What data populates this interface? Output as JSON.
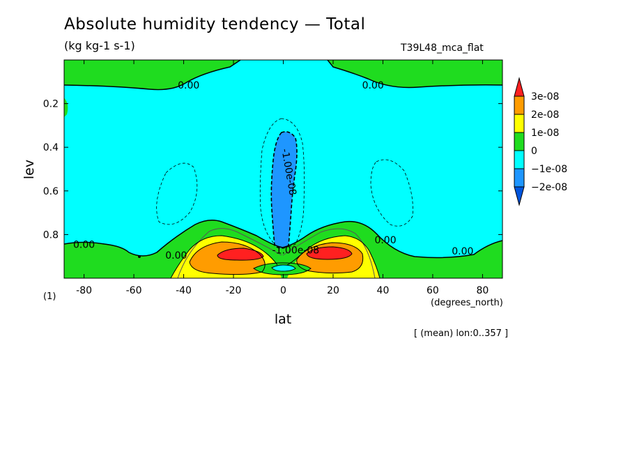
{
  "chart_data": {
    "type": "contour",
    "title": "Absolute humidity tendency — Total",
    "units": "(kg kg-1 s-1)",
    "experiment": "T39L48_mca_flat",
    "xlabel": "lat",
    "xunit": "(degrees_north)",
    "ylabel": "lev",
    "yunit": "(1)",
    "subtitle_note": "[ (mean) lon:0..357 ]",
    "xlim": [
      -88,
      88
    ],
    "ylim": [
      1.0,
      0.0
    ],
    "xticks": [
      -80,
      -60,
      -40,
      -20,
      0,
      20,
      40,
      60,
      80
    ],
    "yticks": [
      0.2,
      0.4,
      0.6,
      0.8
    ],
    "colorbar": {
      "labels": [
        "3e-08",
        "2e-08",
        "1e-08",
        "0",
        "−1e-08",
        "−2e-08"
      ],
      "colors": [
        "#ff2020",
        "#ff9c00",
        "#ffff00",
        "#1fdc1f",
        "#00ffff",
        "#1e96ff",
        "#0055dd"
      ]
    },
    "contour_labels": [
      {
        "text": "0.00",
        "lat": -38,
        "lev": 0.115
      },
      {
        "text": "0.00",
        "lat": 36,
        "lev": 0.115
      },
      {
        "text": "0.00",
        "lat": -80,
        "lev": 0.845
      },
      {
        "text": "0.00",
        "lat": -43,
        "lev": 0.895
      },
      {
        "text": "0.00",
        "lat": 41,
        "lev": 0.825
      },
      {
        "text": "0.00",
        "lat": 72,
        "lev": 0.875
      },
      {
        "text": "-1.00e-08",
        "lat": 1,
        "lev": 0.5
      },
      {
        "text": "-1.00e-08",
        "lat": 5,
        "lev": 0.87
      }
    ]
  }
}
